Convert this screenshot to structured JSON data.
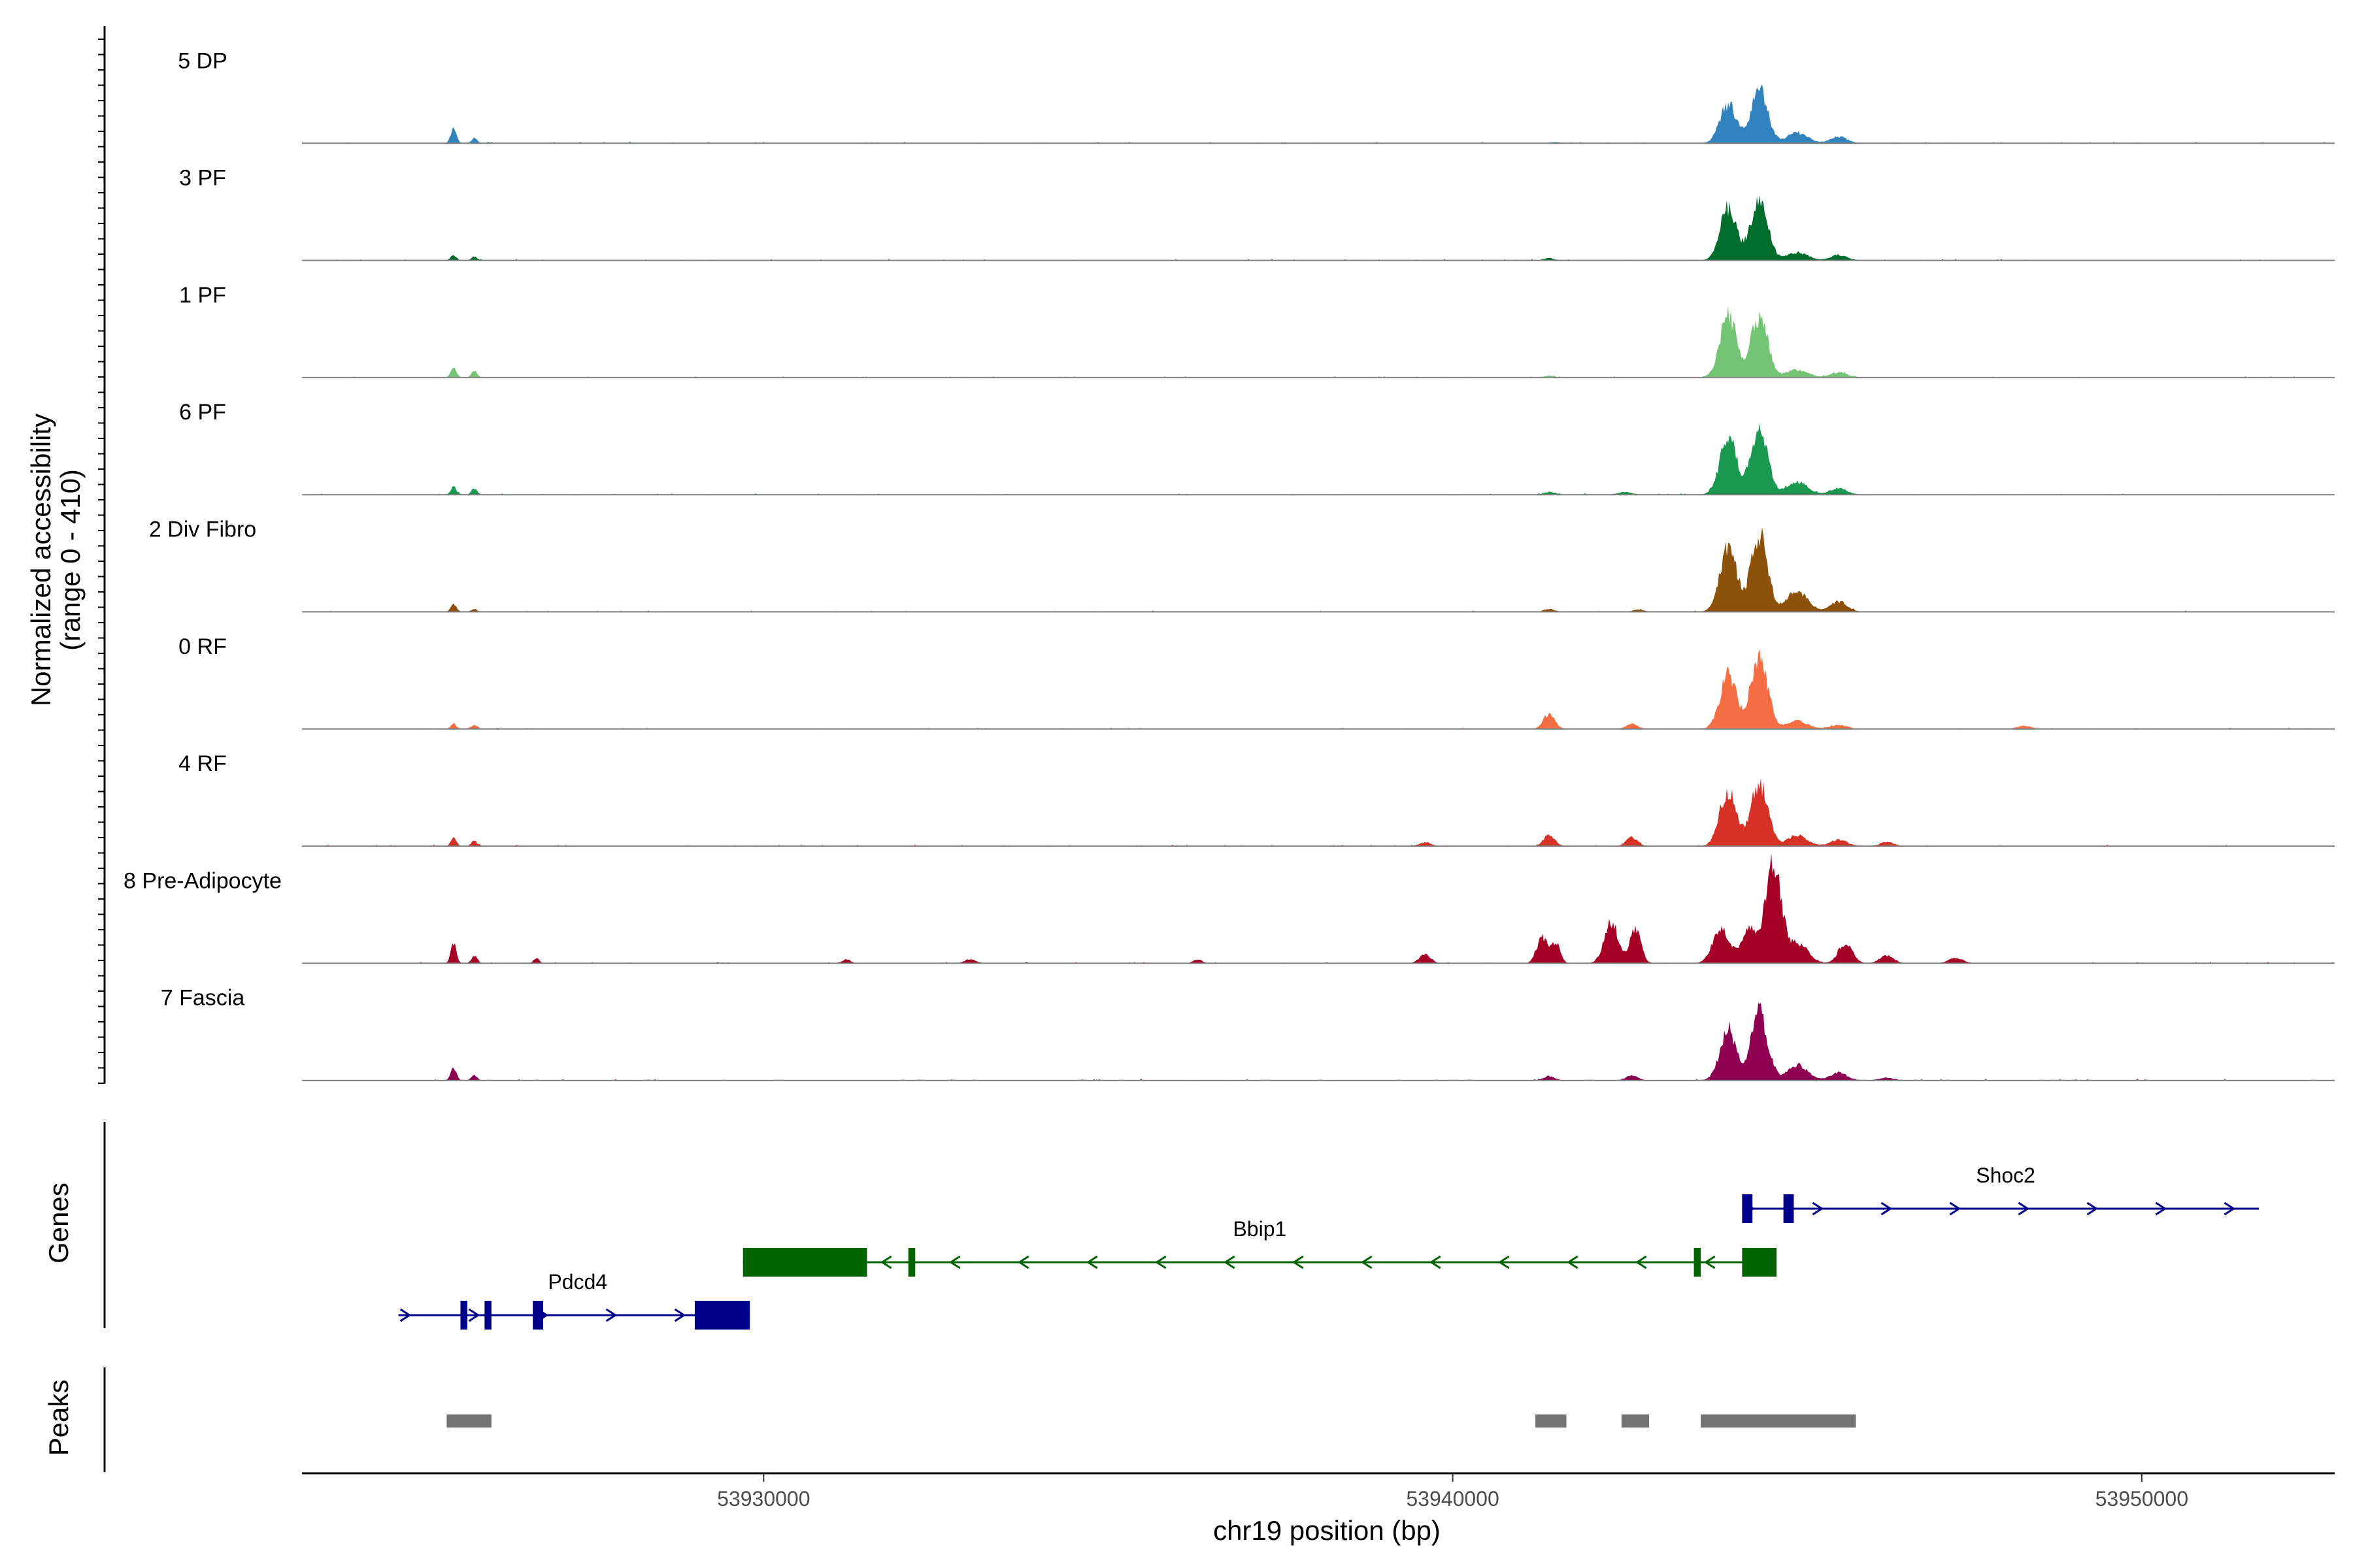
{
  "chart_data": {
    "type": "area",
    "title": "",
    "ylabel": "Normalized accessibility",
    "ylabel_range": "(range 0 - 410)",
    "ylim": [
      0,
      410
    ],
    "xlabel": "chr19 position (bp)",
    "xlim": [
      53923300,
      53952800
    ],
    "x_ticks": [
      53930000,
      53940000,
      53950000
    ],
    "x_tick_labels": [
      "53930000",
      "53940000",
      "53950000"
    ],
    "tracks": [
      {
        "name": "5 DP",
        "color": "#3182bd",
        "peaks": [
          [
            53925500,
            60,
            40
          ],
          [
            53925800,
            20,
            40
          ],
          [
            53941500,
            4,
            80
          ],
          [
            53944000,
            150,
            120
          ],
          [
            53944450,
            210,
            120
          ],
          [
            53945000,
            40,
            150
          ],
          [
            53945600,
            25,
            120
          ]
        ]
      },
      {
        "name": "3 PF",
        "color": "#006d2c",
        "peaks": [
          [
            53925500,
            20,
            40
          ],
          [
            53925800,
            15,
            40
          ],
          [
            53941400,
            8,
            80
          ],
          [
            53944000,
            200,
            120
          ],
          [
            53944450,
            250,
            120
          ],
          [
            53945000,
            30,
            150
          ],
          [
            53945600,
            20,
            120
          ]
        ]
      },
      {
        "name": "1 PF",
        "color": "#74c476",
        "peaks": [
          [
            53925500,
            40,
            40
          ],
          [
            53925800,
            25,
            40
          ],
          [
            53941400,
            6,
            80
          ],
          [
            53944000,
            240,
            120
          ],
          [
            53944450,
            240,
            120
          ],
          [
            53945000,
            30,
            150
          ],
          [
            53945600,
            20,
            120
          ]
        ]
      },
      {
        "name": "6 PF",
        "color": "#1a9850",
        "peaks": [
          [
            53925500,
            30,
            40
          ],
          [
            53925800,
            25,
            40
          ],
          [
            53941400,
            10,
            80
          ],
          [
            53942500,
            10,
            100
          ],
          [
            53944000,
            220,
            120
          ],
          [
            53944450,
            250,
            120
          ],
          [
            53945000,
            50,
            150
          ],
          [
            53945600,
            25,
            120
          ]
        ]
      },
      {
        "name": "2 Div Fibro",
        "color": "#8c510a",
        "peaks": [
          [
            53925500,
            30,
            40
          ],
          [
            53925800,
            10,
            40
          ],
          [
            53941400,
            10,
            80
          ],
          [
            53942700,
            8,
            80
          ],
          [
            53944000,
            250,
            120
          ],
          [
            53944450,
            300,
            120
          ],
          [
            53945000,
            80,
            150
          ],
          [
            53945600,
            40,
            120
          ]
        ]
      },
      {
        "name": "0 RF",
        "color": "#f46d43",
        "peaks": [
          [
            53925500,
            20,
            40
          ],
          [
            53925800,
            15,
            40
          ],
          [
            53941400,
            60,
            80
          ],
          [
            53942600,
            20,
            80
          ],
          [
            53944000,
            210,
            120
          ],
          [
            53944450,
            290,
            120
          ],
          [
            53945000,
            30,
            150
          ],
          [
            53945600,
            15,
            120
          ],
          [
            53948300,
            12,
            100
          ]
        ]
      },
      {
        "name": "4 RF",
        "color": "#d73027",
        "peaks": [
          [
            53925500,
            30,
            40
          ],
          [
            53925800,
            20,
            40
          ],
          [
            53939600,
            15,
            80
          ],
          [
            53941400,
            45,
            80
          ],
          [
            53942600,
            35,
            80
          ],
          [
            53944000,
            220,
            120
          ],
          [
            53944450,
            250,
            120
          ],
          [
            53945000,
            40,
            150
          ],
          [
            53945600,
            25,
            120
          ],
          [
            53946300,
            15,
            100
          ]
        ]
      },
      {
        "name": "8 Pre-Adipocyte",
        "color": "#a50026",
        "peaks": [
          [
            53925500,
            80,
            40
          ],
          [
            53925800,
            30,
            40
          ],
          [
            53926700,
            20,
            40
          ],
          [
            53931200,
            15,
            60
          ],
          [
            53933000,
            15,
            80
          ],
          [
            53936300,
            15,
            60
          ],
          [
            53939600,
            35,
            80
          ],
          [
            53941300,
            100,
            80
          ],
          [
            53941500,
            80,
            60
          ],
          [
            53942300,
            160,
            100
          ],
          [
            53942650,
            130,
            80
          ],
          [
            53943900,
            140,
            120
          ],
          [
            53944300,
            150,
            100
          ],
          [
            53944650,
            410,
            110
          ],
          [
            53945000,
            80,
            150
          ],
          [
            53945700,
            80,
            100
          ],
          [
            53946300,
            30,
            100
          ],
          [
            53947300,
            20,
            100
          ]
        ]
      },
      {
        "name": "7 Fascia",
        "color": "#8e0152",
        "peaks": [
          [
            53925500,
            50,
            40
          ],
          [
            53925800,
            20,
            40
          ],
          [
            53941400,
            15,
            80
          ],
          [
            53942600,
            20,
            80
          ],
          [
            53944000,
            200,
            120
          ],
          [
            53944450,
            260,
            120
          ],
          [
            53945000,
            60,
            150
          ],
          [
            53945600,
            30,
            120
          ],
          [
            53946300,
            10,
            100
          ]
        ]
      }
    ],
    "genes_track_label": "Genes",
    "peaks_track_label": "Peaks",
    "genes": [
      {
        "name": "Shoc2",
        "strand": "+",
        "start": 53944200,
        "end": 53951700,
        "color": "#00008b",
        "exons": [
          [
            53944200,
            53944350
          ],
          [
            53944800,
            53944950
          ]
        ]
      },
      {
        "name": "Bbip1",
        "strand": "-",
        "start": 53929700,
        "end": 53944700,
        "color": "#006400",
        "exons": [
          [
            53929700,
            53931500
          ],
          [
            53932100,
            53932200
          ],
          [
            53943500,
            53943600
          ],
          [
            53944200,
            53944700
          ]
        ]
      },
      {
        "name": "Pdcd4",
        "strand": "+",
        "start": 53924700,
        "end": 53929800,
        "color": "#00008b",
        "exons": [
          [
            53925600,
            53925700
          ],
          [
            53925950,
            53926050
          ],
          [
            53926650,
            53926800
          ],
          [
            53929000,
            53929800
          ]
        ]
      }
    ],
    "peak_regions": [
      [
        53925400,
        53926050
      ],
      [
        53941200,
        53941650
      ],
      [
        53942450,
        53942850
      ],
      [
        53943600,
        53945850
      ]
    ]
  }
}
